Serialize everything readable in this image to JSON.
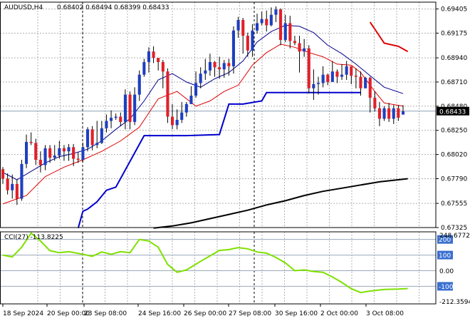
{
  "chart_data": {
    "type": "candlestick",
    "symbol_label": "AUDUSD,H4",
    "ohlc_label": "0.68402 0.68494 0.68399 0.68433",
    "last_price_label": "0.68433",
    "ylim": [
      0.67325,
      0.6947
    ],
    "y_ticks": [
      "0.69405",
      "0.69175",
      "0.68940",
      "0.68710",
      "0.68480",
      "0.68250",
      "0.68020",
      "0.67790",
      "0.67555",
      "0.67325"
    ],
    "x_tick_labels": [
      "18 Sep 2024",
      "20 Sep 00:00",
      "23 Sep 08:00",
      "24 Sep 16:00",
      "26 Sep 00:00",
      "27 Sep 08:00",
      "30 Sep 16:00",
      "2 Oct 00:00",
      "3 Oct 08:00"
    ],
    "colors": {
      "bull": "#1f3fbf",
      "bear": "#e0202a",
      "wick": "#000000",
      "sma_short": "#00008b",
      "sma_mid": "#dd0000",
      "sma_long": "#000000",
      "stop": "#0000cc",
      "cci": "#7fe000",
      "grid": "#b0b0b0"
    },
    "candles": [
      [
        0.6788,
        0.6779,
        0.6774,
        0.679
      ],
      [
        0.6779,
        0.6768,
        0.6764,
        0.6784
      ],
      [
        0.6768,
        0.6774,
        0.676,
        0.6783
      ],
      [
        0.6774,
        0.676,
        0.6754,
        0.6778
      ],
      [
        0.676,
        0.6793,
        0.6758,
        0.6797
      ],
      [
        0.6793,
        0.6814,
        0.6789,
        0.6821
      ],
      [
        0.6814,
        0.6813,
        0.6811,
        0.6823
      ],
      [
        0.6813,
        0.6797,
        0.6792,
        0.6817
      ],
      [
        0.6797,
        0.6792,
        0.6785,
        0.6805
      ],
      [
        0.6792,
        0.6808,
        0.6787,
        0.6811
      ],
      [
        0.6808,
        0.6799,
        0.6794,
        0.6811
      ],
      [
        0.6799,
        0.6801,
        0.6796,
        0.6811
      ],
      [
        0.6801,
        0.6808,
        0.6798,
        0.6815
      ],
      [
        0.6808,
        0.6805,
        0.6796,
        0.6811
      ],
      [
        0.6805,
        0.6809,
        0.6796,
        0.6812
      ],
      [
        0.6809,
        0.6798,
        0.6791,
        0.6812
      ],
      [
        0.6798,
        0.6797,
        0.6794,
        0.6804
      ],
      [
        0.6797,
        0.6809,
        0.6795,
        0.6813
      ],
      [
        0.6809,
        0.6826,
        0.6805,
        0.6828
      ],
      [
        0.6826,
        0.6811,
        0.6806,
        0.6829
      ],
      [
        0.6811,
        0.6813,
        0.6808,
        0.6834
      ],
      [
        0.6813,
        0.6827,
        0.6812,
        0.6834
      ],
      [
        0.6827,
        0.6834,
        0.6823,
        0.684
      ],
      [
        0.6834,
        0.6837,
        0.6827,
        0.6844
      ],
      [
        0.6837,
        0.6838,
        0.6835,
        0.6841
      ],
      [
        0.6838,
        0.6833,
        0.6829,
        0.6842
      ],
      [
        0.6833,
        0.6859,
        0.6826,
        0.6864
      ],
      [
        0.6859,
        0.6833,
        0.6826,
        0.6862
      ],
      [
        0.6833,
        0.6859,
        0.683,
        0.6866
      ],
      [
        0.6859,
        0.6878,
        0.6853,
        0.6882
      ],
      [
        0.6878,
        0.689,
        0.6876,
        0.6893
      ],
      [
        0.689,
        0.69,
        0.688,
        0.6904
      ],
      [
        0.69,
        0.6894,
        0.6889,
        0.6905
      ],
      [
        0.6894,
        0.689,
        0.6882,
        0.6893
      ],
      [
        0.689,
        0.6881,
        0.6865,
        0.6892
      ],
      [
        0.6881,
        0.6838,
        0.6832,
        0.6884
      ],
      [
        0.6838,
        0.683,
        0.6826,
        0.685
      ],
      [
        0.683,
        0.6835,
        0.6826,
        0.6845
      ],
      [
        0.6835,
        0.6842,
        0.6832,
        0.6852
      ],
      [
        0.6842,
        0.685,
        0.6838,
        0.6852
      ],
      [
        0.685,
        0.6858,
        0.685,
        0.6867
      ],
      [
        0.6858,
        0.687,
        0.6856,
        0.6881
      ],
      [
        0.687,
        0.6879,
        0.6865,
        0.6885
      ],
      [
        0.6879,
        0.6882,
        0.6873,
        0.6893
      ],
      [
        0.6882,
        0.689,
        0.6877,
        0.6898
      ],
      [
        0.689,
        0.6885,
        0.6876,
        0.6891
      ],
      [
        0.6885,
        0.6883,
        0.6874,
        0.6895
      ],
      [
        0.6883,
        0.6889,
        0.6875,
        0.6892
      ],
      [
        0.6889,
        0.6886,
        0.6877,
        0.6893
      ],
      [
        0.6886,
        0.692,
        0.6879,
        0.6924
      ],
      [
        0.692,
        0.693,
        0.6913,
        0.6933
      ],
      [
        0.693,
        0.6915,
        0.6898,
        0.6932
      ],
      [
        0.6915,
        0.6901,
        0.6895,
        0.6918
      ],
      [
        0.6901,
        0.692,
        0.6895,
        0.6926
      ],
      [
        0.692,
        0.6927,
        0.6917,
        0.6936
      ],
      [
        0.6927,
        0.6931,
        0.6925,
        0.6938
      ],
      [
        0.6931,
        0.6925,
        0.6919,
        0.6939
      ],
      [
        0.6925,
        0.6935,
        0.6924,
        0.6942
      ],
      [
        0.6935,
        0.694,
        0.6928,
        0.6943
      ],
      [
        0.694,
        0.6911,
        0.6906,
        0.6941
      ],
      [
        0.6911,
        0.6927,
        0.6909,
        0.6935
      ],
      [
        0.6927,
        0.691,
        0.6903,
        0.6934
      ],
      [
        0.691,
        0.6908,
        0.6906,
        0.6915
      ],
      [
        0.6908,
        0.69,
        0.688,
        0.6915
      ],
      [
        0.69,
        0.6903,
        0.6895,
        0.6912
      ],
      [
        0.6903,
        0.6865,
        0.686,
        0.6906
      ],
      [
        0.6865,
        0.6869,
        0.6854,
        0.6883
      ],
      [
        0.6869,
        0.687,
        0.6859,
        0.6876
      ],
      [
        0.687,
        0.6878,
        0.6866,
        0.6886
      ],
      [
        0.6878,
        0.6871,
        0.6868,
        0.6879
      ],
      [
        0.6871,
        0.6881,
        0.6872,
        0.6891
      ],
      [
        0.6881,
        0.6876,
        0.687,
        0.6883
      ],
      [
        0.6876,
        0.6878,
        0.6873,
        0.6888
      ],
      [
        0.6878,
        0.6886,
        0.6873,
        0.6891
      ],
      [
        0.6886,
        0.6877,
        0.6869,
        0.6886
      ],
      [
        0.6877,
        0.6876,
        0.6865,
        0.6884
      ],
      [
        0.6876,
        0.6865,
        0.6858,
        0.6881
      ],
      [
        0.6865,
        0.6875,
        0.6866,
        0.6876
      ],
      [
        0.6875,
        0.6856,
        0.6842,
        0.6876
      ],
      [
        0.6856,
        0.6846,
        0.6843,
        0.6862
      ],
      [
        0.6846,
        0.6836,
        0.6829,
        0.6852
      ],
      [
        0.6836,
        0.6846,
        0.6834,
        0.6848
      ],
      [
        0.6846,
        0.6836,
        0.6833,
        0.6851
      ],
      [
        0.6836,
        0.6846,
        0.6831,
        0.6849
      ],
      [
        0.6846,
        0.6837,
        0.6834,
        0.6849
      ],
      [
        0.684,
        0.6843,
        0.684,
        0.6849
      ]
    ],
    "sma_short": [
      [
        0,
        0.6785
      ],
      [
        3,
        0.6778
      ],
      [
        6,
        0.6786
      ],
      [
        9,
        0.6794
      ],
      [
        12,
        0.68
      ],
      [
        15,
        0.6803
      ],
      [
        18,
        0.6807
      ],
      [
        21,
        0.6815
      ],
      [
        24,
        0.6826
      ],
      [
        27,
        0.6836
      ],
      [
        30,
        0.6853
      ],
      [
        33,
        0.6873
      ],
      [
        36,
        0.6879
      ],
      [
        39,
        0.6871
      ],
      [
        42,
        0.6866
      ],
      [
        45,
        0.6874
      ],
      [
        48,
        0.688
      ],
      [
        51,
        0.6891
      ],
      [
        54,
        0.6909
      ],
      [
        57,
        0.6919
      ],
      [
        60,
        0.6925
      ],
      [
        63,
        0.6924
      ],
      [
        66,
        0.6918
      ],
      [
        69,
        0.6906
      ],
      [
        72,
        0.6898
      ],
      [
        75,
        0.6888
      ],
      [
        78,
        0.6877
      ],
      [
        81,
        0.6866
      ],
      [
        85,
        0.686
      ]
    ],
    "sma_mid": [
      [
        0,
        0.6755
      ],
      [
        5,
        0.6763
      ],
      [
        9,
        0.6781
      ],
      [
        13,
        0.679
      ],
      [
        17,
        0.6797
      ],
      [
        21,
        0.6805
      ],
      [
        25,
        0.6815
      ],
      [
        29,
        0.6828
      ],
      [
        33,
        0.6855
      ],
      [
        37,
        0.6862
      ],
      [
        41,
        0.6848
      ],
      [
        44,
        0.6853
      ],
      [
        47,
        0.6862
      ],
      [
        50,
        0.6868
      ],
      [
        53,
        0.6887
      ],
      [
        56,
        0.6899
      ],
      [
        59,
        0.6907
      ],
      [
        62,
        0.6904
      ],
      [
        65,
        0.6899
      ],
      [
        68,
        0.6895
      ],
      [
        71,
        0.6888
      ],
      [
        74,
        0.6887
      ],
      [
        76,
        0.688
      ],
      [
        79,
        0.6862
      ],
      [
        81,
        0.6851
      ],
      [
        85,
        0.6848
      ]
    ],
    "sma_mid_segment": [
      [
        78,
        0.6928
      ],
      [
        81,
        0.6908
      ],
      [
        84,
        0.6905
      ],
      [
        86,
        0.69
      ]
    ],
    "sma_long": [
      [
        32,
        0.6732
      ],
      [
        36,
        0.6734
      ],
      [
        40,
        0.6737
      ],
      [
        44,
        0.6741
      ],
      [
        48,
        0.6745
      ],
      [
        52,
        0.6749
      ],
      [
        56,
        0.6754
      ],
      [
        60,
        0.6758
      ],
      [
        64,
        0.6763
      ],
      [
        68,
        0.6767
      ],
      [
        72,
        0.677
      ],
      [
        76,
        0.6773
      ],
      [
        80,
        0.6776
      ],
      [
        84,
        0.6778
      ],
      [
        86,
        0.6779
      ]
    ],
    "trail_stop": [
      [
        16,
        0.6732
      ],
      [
        17,
        0.6748
      ],
      [
        18,
        0.675
      ],
      [
        20,
        0.6757
      ],
      [
        22,
        0.6768
      ],
      [
        24,
        0.6771
      ],
      [
        30,
        0.682
      ],
      [
        36,
        0.682
      ],
      [
        39,
        0.682
      ],
      [
        46,
        0.6821
      ],
      [
        48,
        0.685
      ],
      [
        51,
        0.685
      ],
      [
        55,
        0.6853
      ],
      [
        56,
        0.6861
      ],
      [
        72,
        0.6861
      ],
      [
        76,
        0.6861
      ]
    ],
    "cci": {
      "label": "CCI(27) -113.8225",
      "ylim": [
        -212.3594,
        248.6772
      ],
      "max_label": "248.6772",
      "min_label": "-212.3594",
      "levels": [
        "200",
        "100",
        "0.00",
        "-100"
      ],
      "values": [
        [
          0,
          100
        ],
        [
          2,
          88
        ],
        [
          4,
          150
        ],
        [
          6,
          240
        ],
        [
          8,
          190
        ],
        [
          10,
          128
        ],
        [
          12,
          115
        ],
        [
          14,
          122
        ],
        [
          17,
          105
        ],
        [
          19,
          92
        ],
        [
          21,
          120
        ],
        [
          23,
          105
        ],
        [
          25,
          122
        ],
        [
          27,
          115
        ],
        [
          29,
          200
        ],
        [
          31,
          190
        ],
        [
          33,
          150
        ],
        [
          35,
          40
        ],
        [
          37,
          -10
        ],
        [
          39,
          5
        ],
        [
          42,
          60
        ],
        [
          44,
          95
        ],
        [
          46,
          130
        ],
        [
          48,
          135
        ],
        [
          50,
          148
        ],
        [
          52,
          140
        ],
        [
          54,
          120
        ],
        [
          56,
          112
        ],
        [
          58,
          85
        ],
        [
          60,
          50
        ],
        [
          62,
          0
        ],
        [
          64,
          5
        ],
        [
          66,
          -5
        ],
        [
          68,
          -10
        ],
        [
          70,
          -40
        ],
        [
          72,
          -75
        ],
        [
          74,
          -115
        ],
        [
          76,
          -140
        ],
        [
          78,
          -130
        ],
        [
          81,
          -120
        ],
        [
          84,
          -118
        ],
        [
          86,
          -114
        ]
      ]
    }
  }
}
